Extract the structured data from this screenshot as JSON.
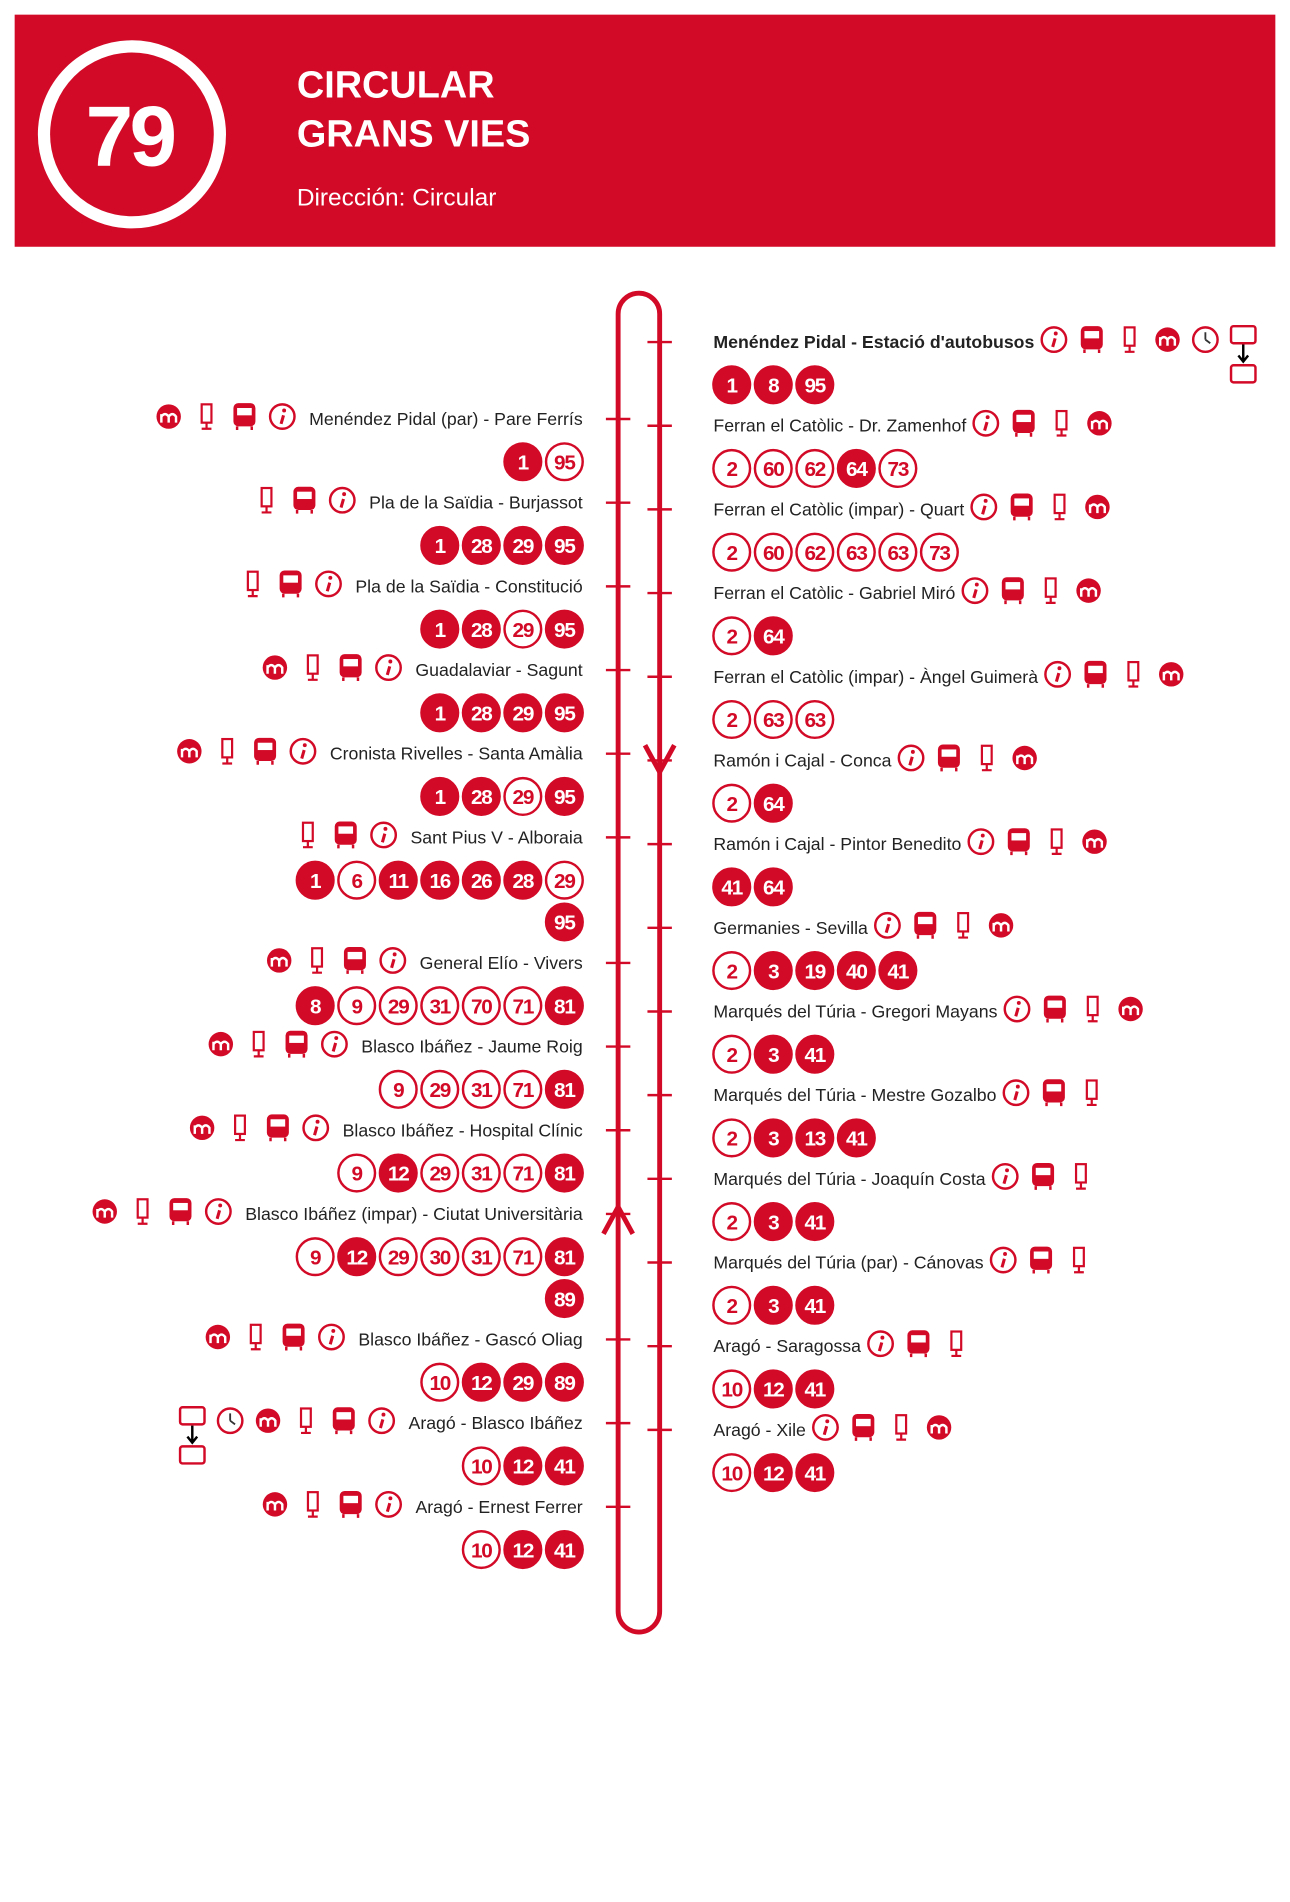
{
  "header": {
    "route": "79",
    "title": [
      "CIRCULAR",
      "GRANS VIES"
    ],
    "direction": "Dirección: Circular"
  },
  "outbound": [
    {
      "name": "Menéndez Pidal - Estació d'autobusos",
      "bold": true,
      "lines": [
        {
          "n": "1",
          "solid": true
        },
        {
          "n": "8",
          "solid": true
        },
        {
          "n": "95",
          "solid": true
        }
      ]
    },
    {
      "name": "Ferran el Catòlic - Dr. Zamenhof",
      "lines": [
        {
          "n": "2",
          "solid": false
        },
        {
          "n": "60",
          "solid": false
        },
        {
          "n": "62",
          "solid": false
        },
        {
          "n": "64",
          "solid": true
        },
        {
          "n": "73",
          "solid": false
        }
      ]
    },
    {
      "name": "Ferran el Catòlic (impar) - Quart",
      "lines": [
        {
          "n": "2",
          "solid": false
        },
        {
          "n": "60",
          "solid": false
        },
        {
          "n": "62",
          "solid": false
        },
        {
          "n": "63",
          "solid": false
        },
        {
          "n": "63",
          "solid": false
        },
        {
          "n": "73",
          "solid": false
        }
      ]
    },
    {
      "name": "Ferran el Catòlic - Gabriel Miró",
      "lines": [
        {
          "n": "2",
          "solid": false
        },
        {
          "n": "64",
          "solid": true
        }
      ]
    },
    {
      "name": "Ferran el Catòlic (impar) - Àngel Guimerà",
      "lines": [
        {
          "n": "2",
          "solid": false
        },
        {
          "n": "63",
          "solid": false
        },
        {
          "n": "63",
          "solid": false
        }
      ]
    },
    {
      "name": "Ramón i Cajal - Conca",
      "lines": [
        {
          "n": "2",
          "solid": false
        },
        {
          "n": "64",
          "solid": true
        }
      ]
    },
    {
      "name": "Ramón i Cajal - Pintor Benedito",
      "lines": [
        {
          "n": "41",
          "solid": true
        },
        {
          "n": "64",
          "solid": true
        }
      ]
    },
    {
      "name": "Germanies - Sevilla",
      "lines": [
        {
          "n": "2",
          "solid": false
        },
        {
          "n": "3",
          "solid": true
        },
        {
          "n": "19",
          "solid": true
        },
        {
          "n": "40",
          "solid": true
        },
        {
          "n": "41",
          "solid": true
        }
      ]
    },
    {
      "name": "Marqués del Túria - Gregori Mayans",
      "lines": [
        {
          "n": "2",
          "solid": false
        },
        {
          "n": "3",
          "solid": true
        },
        {
          "n": "41",
          "solid": true
        }
      ]
    },
    {
      "name": "Marqués del Túria - Mestre Gozalbo",
      "lines": [
        {
          "n": "2",
          "solid": false
        },
        {
          "n": "3",
          "solid": true
        },
        {
          "n": "13",
          "solid": true
        },
        {
          "n": "41",
          "solid": true
        }
      ]
    },
    {
      "name": "Marqués del Túria - Joaquín Costa",
      "lines": [
        {
          "n": "2",
          "solid": false
        },
        {
          "n": "3",
          "solid": true
        },
        {
          "n": "41",
          "solid": true
        }
      ]
    },
    {
      "name": "Marqués del Túria (par) - Cánovas",
      "lines": [
        {
          "n": "2",
          "solid": false
        },
        {
          "n": "3",
          "solid": true
        },
        {
          "n": "41",
          "solid": true
        }
      ]
    },
    {
      "name": "Aragó - Saragossa",
      "lines": [
        {
          "n": "10",
          "solid": false
        },
        {
          "n": "12",
          "solid": true
        },
        {
          "n": "41",
          "solid": true
        }
      ]
    },
    {
      "name": "Aragó - Xile",
      "lines": [
        {
          "n": "10",
          "solid": false
        },
        {
          "n": "12",
          "solid": true
        },
        {
          "n": "41",
          "solid": true
        }
      ]
    }
  ],
  "inbound": [
    {
      "name": "Menéndez Pidal (par) - Pare Ferrís",
      "lines": [
        {
          "n": "1",
          "solid": true
        },
        {
          "n": "95",
          "solid": false
        }
      ]
    },
    {
      "name": "Pla de la Saïdia - Burjassot",
      "lines": [
        {
          "n": "1",
          "solid": true
        },
        {
          "n": "28",
          "solid": true
        },
        {
          "n": "29",
          "solid": true
        },
        {
          "n": "95",
          "solid": true
        }
      ]
    },
    {
      "name": "Pla de la Saïdia - Constitució",
      "lines": [
        {
          "n": "1",
          "solid": true
        },
        {
          "n": "28",
          "solid": true
        },
        {
          "n": "29",
          "solid": false
        },
        {
          "n": "95",
          "solid": true
        }
      ]
    },
    {
      "name": "Guadalaviar - Sagunt",
      "lines": [
        {
          "n": "1",
          "solid": true
        },
        {
          "n": "28",
          "solid": true
        },
        {
          "n": "29",
          "solid": true
        },
        {
          "n": "95",
          "solid": true
        }
      ]
    },
    {
      "name": "Cronista Rivelles - Santa Amàlia",
      "lines": [
        {
          "n": "1",
          "solid": true
        },
        {
          "n": "28",
          "solid": true
        },
        {
          "n": "29",
          "solid": false
        },
        {
          "n": "95",
          "solid": true
        }
      ]
    },
    {
      "name": "Sant Pius V - Alboraia",
      "lines": [
        {
          "n": "1",
          "solid": true
        },
        {
          "n": "6",
          "solid": false
        },
        {
          "n": "11",
          "solid": true
        },
        {
          "n": "16",
          "solid": true
        },
        {
          "n": "26",
          "solid": true
        },
        {
          "n": "28",
          "solid": true
        },
        {
          "n": "29",
          "solid": false
        },
        {
          "n": "95",
          "solid": true
        }
      ]
    },
    {
      "name": "General Elío - Vivers",
      "lines": [
        {
          "n": "8",
          "solid": true
        },
        {
          "n": "9",
          "solid": false
        },
        {
          "n": "29",
          "solid": false
        },
        {
          "n": "31",
          "solid": false
        },
        {
          "n": "70",
          "solid": false
        },
        {
          "n": "71",
          "solid": false
        },
        {
          "n": "81",
          "solid": true
        }
      ]
    },
    {
      "name": "Blasco Ibáñez - Jaume Roig",
      "lines": [
        {
          "n": "9",
          "solid": false
        },
        {
          "n": "29",
          "solid": false
        },
        {
          "n": "31",
          "solid": false
        },
        {
          "n": "71",
          "solid": false
        },
        {
          "n": "81",
          "solid": true
        }
      ]
    },
    {
      "name": "Blasco Ibáñez - Hospital Clínic",
      "lines": [
        {
          "n": "9",
          "solid": false
        },
        {
          "n": "12",
          "solid": true
        },
        {
          "n": "29",
          "solid": false
        },
        {
          "n": "31",
          "solid": false
        },
        {
          "n": "71",
          "solid": false
        },
        {
          "n": "81",
          "solid": true
        }
      ]
    },
    {
      "name": "Blasco Ibáñez (impar) - Ciutat Universitària",
      "lines": [
        {
          "n": "9",
          "solid": false
        },
        {
          "n": "12",
          "solid": true
        },
        {
          "n": "29",
          "solid": false
        },
        {
          "n": "30",
          "solid": false
        },
        {
          "n": "31",
          "solid": false
        },
        {
          "n": "71",
          "solid": false
        },
        {
          "n": "81",
          "solid": true
        },
        {
          "n": "89",
          "solid": true
        }
      ]
    },
    {
      "name": "Blasco Ibáñez - Gascó Oliag",
      "lines": [
        {
          "n": "10",
          "solid": false
        },
        {
          "n": "12",
          "solid": true
        },
        {
          "n": "29",
          "solid": true
        },
        {
          "n": "89",
          "solid": true
        }
      ]
    },
    {
      "name": "Aragó - Blasco Ibáñez",
      "lines": [
        {
          "n": "10",
          "solid": false
        },
        {
          "n": "12",
          "solid": true
        },
        {
          "n": "41",
          "solid": true
        }
      ]
    },
    {
      "name": "Aragó - Ernest Ferrer",
      "lines": [
        {
          "n": "10",
          "solid": false
        },
        {
          "n": "12",
          "solid": true
        },
        {
          "n": "41",
          "solid": true
        }
      ]
    }
  ]
}
